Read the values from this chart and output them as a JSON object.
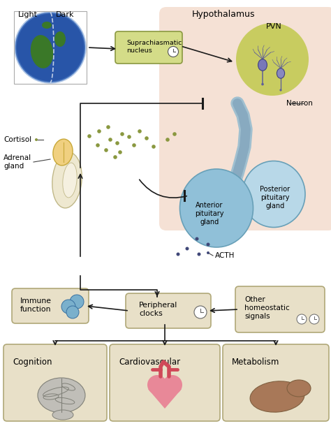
{
  "bg": "#ffffff",
  "tan_fill": "#e8e0c8",
  "tan_edge": "#b0a878",
  "green_fill": "#d4dc88",
  "green_edge": "#8a9840",
  "arrow_col": "#1a1a1a",
  "hypo_pink": "#f2d8c8",
  "pvn_green": "#c8cc60",
  "neuron_body": "#7878b0",
  "neuron_edge": "#404080",
  "axon_col": "#606098",
  "pit_ant": "#90c0d8",
  "pit_post": "#b8d8e8",
  "pit_stalk": "#a0c0d0",
  "adrenal_yel": "#f0d080",
  "adrenal_edge": "#c8a838",
  "kidney_fill": "#eee8d0",
  "kidney_edge": "#c0b888",
  "cortisol_dot": "#8a9840",
  "acth_dot": "#404878",
  "immune_blue": "#7ab0cc",
  "immune_edge": "#3870a0",
  "heart_red": "#d04858",
  "heart_light": "#e88898",
  "brain_fill": "#c0beb8",
  "brain_edge": "#808078",
  "liver_fill": "#a87858",
  "liver_edge": "#806040",
  "earth_blue": "#2855a8",
  "earth_land": "#3a7828",
  "clock_fill": "#ffffff",
  "clock_edge": "#555555",
  "lbl_light": "Light",
  "lbl_dark": "Dark",
  "lbl_scn": "Suprachiasmatic\nnucleus",
  "lbl_hypo": "Hypothalamus",
  "lbl_pvn": "PVN",
  "lbl_neuron": "Neuron",
  "lbl_cortisol": "Cortisol",
  "lbl_adrenal": "Adrenal\ngland",
  "lbl_ant": "Anterior\npituitary\ngland",
  "lbl_post": "Posterior\npituitary\ngland",
  "lbl_acth": "ACTH",
  "lbl_periph": "Peripheral\nclocks",
  "lbl_immune": "Immune\nfunction",
  "lbl_other": "Other\nhomeostatic\nsignals",
  "lbl_cog": "Cognition",
  "lbl_cardio": "Cardiovascular",
  "lbl_metab": "Metabolism"
}
